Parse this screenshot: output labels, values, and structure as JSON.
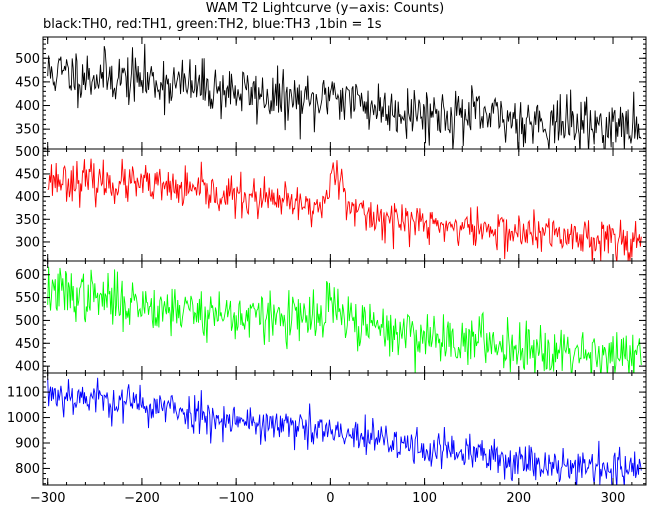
{
  "title": "WAM T2 Lightcurve (y−axis: Counts)",
  "subtitle": "black:TH0, red:TH1, green:TH2, blue:TH3 ,1bin = 1s",
  "chart_data": [
    {
      "type": "line",
      "name": "TH0",
      "color": "#000000",
      "x_range": [
        -300,
        330
      ],
      "xlim": [
        -305,
        335
      ],
      "ylim": [
        308,
        545
      ],
      "yticks": [
        350,
        400,
        450,
        500
      ],
      "ytick_labels": [
        "350",
        "400",
        "450",
        "500"
      ],
      "x": [
        -300,
        -200,
        -100,
        -10,
        0,
        10,
        50,
        100,
        200,
        330
      ],
      "values": [
        470,
        455,
        430,
        400,
        440,
        420,
        395,
        385,
        370,
        350
      ],
      "noise": 28,
      "seed": 11
    },
    {
      "type": "line",
      "name": "TH1",
      "color": "#ff0000",
      "x_range": [
        -300,
        330
      ],
      "xlim": [
        -305,
        335
      ],
      "ylim": [
        258,
        505
      ],
      "yticks": [
        300,
        350,
        400,
        450,
        500
      ],
      "ytick_labels": [
        "300",
        "350",
        "400",
        "450",
        "500"
      ],
      "x": [
        -300,
        -200,
        -100,
        -10,
        0,
        5,
        15,
        30,
        100,
        200,
        330
      ],
      "values": [
        440,
        425,
        400,
        375,
        420,
        480,
        410,
        360,
        340,
        320,
        305
      ],
      "noise": 22,
      "seed": 23
    },
    {
      "type": "line",
      "name": "TH2",
      "color": "#00ff00",
      "x_range": [
        -300,
        330
      ],
      "xlim": [
        -305,
        335
      ],
      "ylim": [
        385,
        630
      ],
      "yticks": [
        400,
        450,
        500,
        550,
        600
      ],
      "ytick_labels": [
        "400",
        "450",
        "500",
        "550",
        "600"
      ],
      "x": [
        -300,
        -200,
        -100,
        -10,
        0,
        10,
        30,
        100,
        200,
        330
      ],
      "values": [
        565,
        535,
        510,
        500,
        545,
        510,
        490,
        465,
        445,
        420
      ],
      "noise": 28,
      "seed": 37
    },
    {
      "type": "line",
      "name": "TH3",
      "color": "#0000ff",
      "x_range": [
        -300,
        330
      ],
      "xlim": [
        -305,
        335
      ],
      "ylim": [
        735,
        1175
      ],
      "yticks": [
        800,
        900,
        1000,
        1100
      ],
      "ytick_labels": [
        "800",
        "900",
        "1000",
        "1100"
      ],
      "x": [
        -300,
        -200,
        -100,
        0,
        100,
        200,
        330
      ],
      "values": [
        1100,
        1050,
        990,
        940,
        880,
        830,
        790
      ],
      "noise": 38,
      "seed": 53
    }
  ],
  "xaxis": {
    "xlim": [
      -305,
      335
    ],
    "ticks": [
      -300,
      -200,
      -100,
      0,
      100,
      200,
      300
    ],
    "tick_labels": [
      "−300",
      "−200",
      "−100",
      "0",
      "100",
      "200",
      "300"
    ]
  }
}
